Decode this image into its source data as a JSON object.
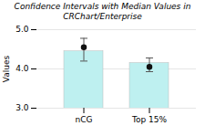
{
  "chart_data": {
    "type": "bar",
    "title": "Confidence Intervals with Median Values in\nCRChart/Enterprise",
    "categories": [
      "nCG",
      "Top 15%"
    ],
    "values": [
      4.45,
      4.15
    ],
    "color": "#bef0f0",
    "medians": [
      4.55,
      4.05
    ],
    "ci_lower": [
      4.2,
      3.93
    ],
    "ci_upper": [
      4.78,
      4.28
    ],
    "ylabel": "Values",
    "ylim": [
      3.0,
      5.0
    ],
    "yticks": [
      {
        "value": 3,
        "label": "3.0"
      },
      {
        "value": 4,
        "label": "4.0"
      },
      {
        "value": 5,
        "label": "5.0"
      }
    ],
    "grid": true
  }
}
